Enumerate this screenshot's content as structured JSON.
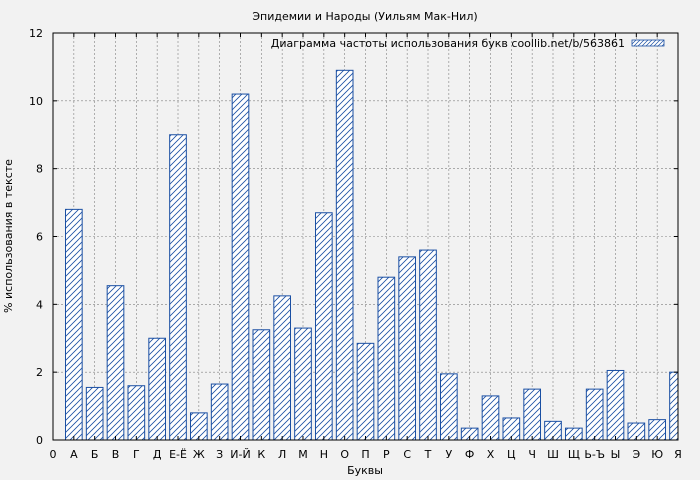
{
  "chart_data": {
    "type": "bar",
    "title": "Эпидемии и Народы (Уильям Мак-Нил)",
    "xlabel": "Буквы",
    "ylabel": "% использования в тексте",
    "ylim": [
      0,
      12
    ],
    "yticks": [
      0,
      2,
      4,
      6,
      8,
      10,
      12
    ],
    "x_tick_labels": [
      "0",
      "А",
      "Б",
      "В",
      "Г",
      "Д",
      "Е-Ё",
      "Ж",
      "З",
      "И-Й",
      "К",
      "Л",
      "М",
      "Н",
      "О",
      "П",
      "Р",
      "С",
      "Т",
      "У",
      "Ф",
      "Х",
      "Ц",
      "Ч",
      "Ш",
      "Щ",
      "Ь-Ъ",
      "Ы",
      "Э",
      "Ю",
      "Я"
    ],
    "categories": [
      "А",
      "Б",
      "В",
      "Г",
      "Д",
      "Е-Ё",
      "Ж",
      "З",
      "И-Й",
      "К",
      "Л",
      "М",
      "Н",
      "О",
      "П",
      "Р",
      "С",
      "Т",
      "У",
      "Ф",
      "Х",
      "Ц",
      "Ч",
      "Ш",
      "Щ",
      "Ь-Ъ",
      "Ы",
      "Э",
      "Ю",
      "Я"
    ],
    "values": [
      6.8,
      1.55,
      4.55,
      1.6,
      3.0,
      9.0,
      0.8,
      1.65,
      10.2,
      3.25,
      4.25,
      3.3,
      6.7,
      10.9,
      2.85,
      4.8,
      5.4,
      5.6,
      1.95,
      0.35,
      1.3,
      0.65,
      1.5,
      0.55,
      0.35,
      1.5,
      2.05,
      0.5,
      0.6,
      2.0
    ],
    "series": [
      {
        "name": "Диаграмма частоты использования букв coollib.net/b/563861"
      }
    ],
    "grid": true,
    "legend_position": "top-right",
    "colors": {
      "bar_edge": "#1a4fa3",
      "bar_fill": "#ffffff",
      "background": "#f2f2f2",
      "grid": "#808080"
    }
  }
}
